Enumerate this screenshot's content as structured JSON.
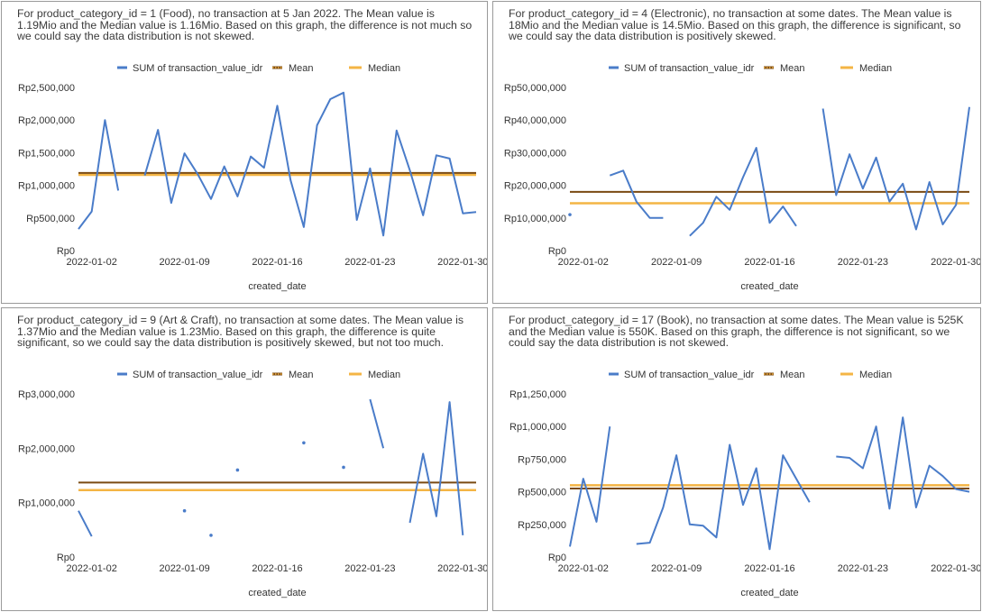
{
  "chart_data": [
    {
      "type": "line",
      "description": "For product_category_id = 1 (Food), no transaction at 5 Jan 2022. The Mean value is 1.19Mio and the Median value is 1.16Mio. Based on this graph, the difference is not much so we could say the data distribution is not skewed.",
      "xlabel": "created_date",
      "ylabel": "",
      "ylim": [
        0,
        2500000
      ],
      "yticks": [
        0,
        500000,
        1000000,
        1500000,
        2000000,
        2500000
      ],
      "ytick_labels": [
        "Rp0",
        "Rp500,000",
        "Rp1,000,000",
        "Rp1,500,000",
        "Rp2,000,000",
        "Rp2,500,000"
      ],
      "x_first_day": 1,
      "x_last_day": 31,
      "xtick_days": [
        2,
        9,
        16,
        23,
        30
      ],
      "xtick_labels": [
        "2022-01-02",
        "2022-01-09",
        "2022-01-16",
        "2022-01-23",
        "2022-01-30"
      ],
      "legend": [
        "SUM of transaction_value_idr",
        "Mean",
        "Median"
      ],
      "legend_position": "top",
      "series": [
        {
          "name": "SUM of transaction_value_idr",
          "values": [
            330000,
            600000,
            2000000,
            920000,
            null,
            1150000,
            1850000,
            730000,
            1490000,
            1170000,
            790000,
            1290000,
            830000,
            1440000,
            1270000,
            2220000,
            1080000,
            360000,
            1920000,
            2320000,
            2420000,
            470000,
            1260000,
            230000,
            1840000,
            1230000,
            540000,
            1460000,
            1410000,
            570000,
            590000
          ]
        },
        {
          "name": "Mean",
          "value": 1190000
        },
        {
          "name": "Median",
          "value": 1160000
        }
      ]
    },
    {
      "type": "line",
      "description": "For product_category_id = 4 (Electronic), no transaction at some dates. The Mean value is 18Mio and the Median value is 14.5Mio. Based on this graph, the difference is significant, so we could say the data distribution is positively skewed.",
      "xlabel": "created_date",
      "ylabel": "",
      "ylim": [
        0,
        50000000
      ],
      "yticks": [
        0,
        10000000,
        20000000,
        30000000,
        40000000,
        50000000
      ],
      "ytick_labels": [
        "Rp0",
        "Rp10,000,000",
        "Rp20,000,000",
        "Rp30,000,000",
        "Rp40,000,000",
        "Rp50,000,000"
      ],
      "x_first_day": 1,
      "x_last_day": 31,
      "xtick_days": [
        2,
        9,
        16,
        23,
        30
      ],
      "xtick_labels": [
        "2022-01-02",
        "2022-01-09",
        "2022-01-16",
        "2022-01-23",
        "2022-01-30"
      ],
      "legend": [
        "SUM of transaction_value_idr",
        "Mean",
        "Median"
      ],
      "legend_position": "top",
      "series": [
        {
          "name": "SUM of transaction_value_idr",
          "values": [
            11000000,
            null,
            null,
            23000000,
            24500000,
            15000000,
            10000000,
            10000000,
            null,
            4500000,
            8500000,
            16500000,
            12500000,
            22500000,
            31500000,
            8500000,
            13500000,
            7500000,
            null,
            43500000,
            17000000,
            29500000,
            19000000,
            28500000,
            15000000,
            20500000,
            6500000,
            21000000,
            8000000,
            14000000,
            44000000
          ]
        },
        {
          "name": "Mean",
          "value": 18000000
        },
        {
          "name": "Median",
          "value": 14500000
        }
      ]
    },
    {
      "type": "line",
      "description": "For product_category_id = 9 (Art & Craft), no transaction at some dates. The Mean value is 1.37Mio and the Median value is 1.23Mio. Based on this graph, the difference is quite significant, so we could say the data distribution is positively skewed, but not too much.",
      "xlabel": "created_date",
      "ylabel": "",
      "ylim": [
        0,
        3000000
      ],
      "yticks": [
        0,
        1000000,
        2000000,
        3000000
      ],
      "ytick_labels": [
        "Rp0",
        "Rp1,000,000",
        "Rp2,000,000",
        "Rp3,000,000"
      ],
      "x_first_day": 1,
      "x_last_day": 31,
      "xtick_days": [
        2,
        9,
        16,
        23,
        30
      ],
      "xtick_labels": [
        "2022-01-02",
        "2022-01-09",
        "2022-01-16",
        "2022-01-23",
        "2022-01-30"
      ],
      "legend": [
        "SUM of transaction_value_idr",
        "Mean",
        "Median"
      ],
      "legend_position": "top",
      "series": [
        {
          "name": "SUM of transaction_value_idr",
          "values": [
            850000,
            380000,
            null,
            null,
            null,
            null,
            null,
            null,
            850000,
            null,
            400000,
            null,
            1600000,
            null,
            null,
            null,
            null,
            2100000,
            null,
            null,
            1650000,
            null,
            2900000,
            2000000,
            null,
            630000,
            1900000,
            750000,
            2850000,
            400000,
            null
          ]
        },
        {
          "name": "Mean",
          "value": 1370000
        },
        {
          "name": "Median",
          "value": 1230000
        }
      ]
    },
    {
      "type": "line",
      "description": "For product_category_id = 17 (Book), no transaction at some dates. The Mean value is 525K and the Median value is 550K. Based on this graph, the difference is not significant, so we could say the data distribution is not skewed.",
      "xlabel": "created_date",
      "ylabel": "",
      "ylim": [
        0,
        1250000
      ],
      "yticks": [
        0,
        250000,
        500000,
        750000,
        1000000,
        1250000
      ],
      "ytick_labels": [
        "Rp0",
        "Rp250,000",
        "Rp500,000",
        "Rp750,000",
        "Rp1,000,000",
        "Rp1,250,000"
      ],
      "x_first_day": 1,
      "x_last_day": 31,
      "xtick_days": [
        2,
        9,
        16,
        23,
        30
      ],
      "xtick_labels": [
        "2022-01-02",
        "2022-01-09",
        "2022-01-16",
        "2022-01-23",
        "2022-01-30"
      ],
      "legend": [
        "SUM of transaction_value_idr",
        "Mean",
        "Median"
      ],
      "legend_position": "top",
      "series": [
        {
          "name": "SUM of transaction_value_idr",
          "values": [
            80000,
            600000,
            270000,
            1000000,
            null,
            100000,
            110000,
            380000,
            780000,
            250000,
            240000,
            150000,
            860000,
            400000,
            680000,
            60000,
            780000,
            600000,
            420000,
            null,
            770000,
            760000,
            680000,
            1000000,
            370000,
            1070000,
            380000,
            700000,
            620000,
            520000,
            500000
          ]
        },
        {
          "name": "Mean",
          "value": 525000
        },
        {
          "name": "Median",
          "value": 550000
        }
      ]
    }
  ],
  "colors": {
    "series": "#4a7cc9",
    "mean": "#7a4a12",
    "median": "#f4b545",
    "mean_marker": "#f4b545"
  }
}
